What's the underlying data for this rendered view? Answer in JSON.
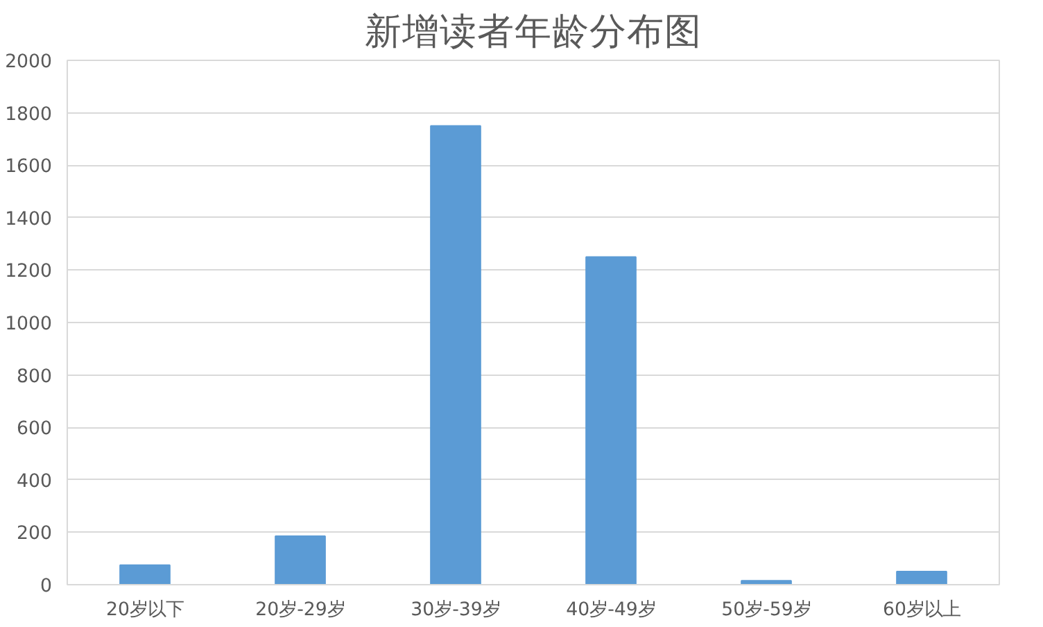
{
  "chart_data": {
    "type": "bar",
    "title": "新增读者年龄分布图",
    "categories": [
      "20岁以下",
      "20岁-29岁",
      "30岁-39岁",
      "40岁-49岁",
      "50岁-59岁",
      "60岁以上"
    ],
    "values": [
      75,
      185,
      1750,
      1250,
      15,
      50
    ],
    "color": "#5b9bd5",
    "ylim": [
      0,
      2000
    ],
    "yticks": [
      0,
      200,
      400,
      600,
      800,
      1000,
      1200,
      1400,
      1600,
      1800,
      2000
    ],
    "grid": "y"
  }
}
